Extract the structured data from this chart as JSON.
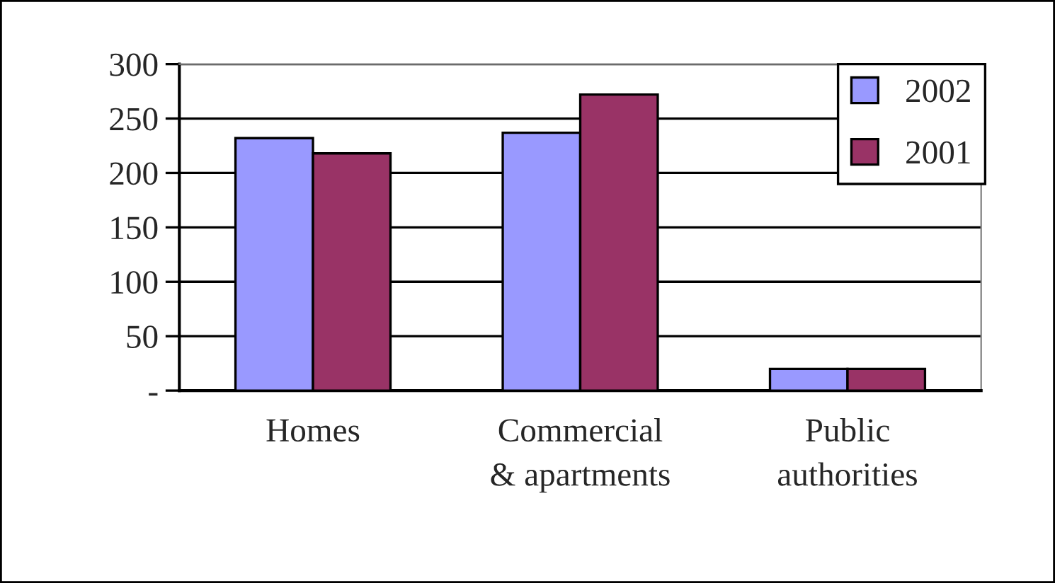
{
  "chart_data": {
    "type": "bar",
    "categories": [
      "Homes",
      "Commercial\n& apartments",
      "Public\nauthorities"
    ],
    "series": [
      {
        "name": "2002",
        "color": "#9999ff",
        "values": [
          232,
          237,
          20
        ]
      },
      {
        "name": "2001",
        "color": "#993366",
        "values": [
          218,
          272,
          20
        ]
      }
    ],
    "ylim": [
      0,
      300
    ],
    "yticks": [
      {
        "value": 0,
        "label": "-"
      },
      50,
      100,
      150,
      200,
      250,
      300
    ],
    "grid": "y",
    "legend": "top right"
  }
}
